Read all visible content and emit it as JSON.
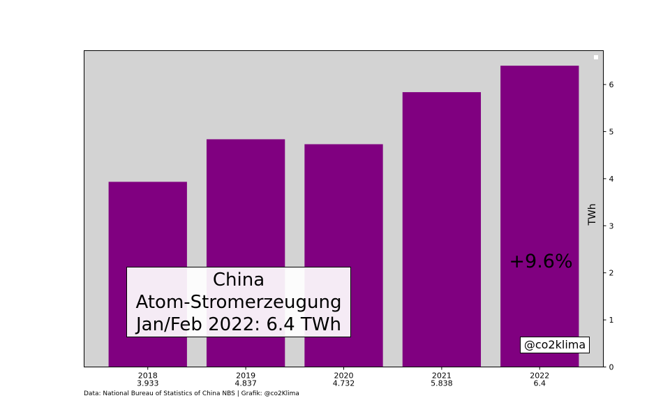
{
  "chart_data": {
    "type": "bar",
    "categories": [
      "2018",
      "2019",
      "2020",
      "2021",
      "2022"
    ],
    "category_value_labels": [
      "3.933",
      "4.837",
      "4.732",
      "5.838",
      "6.4"
    ],
    "values": [
      3.933,
      4.837,
      4.732,
      5.838,
      6.4
    ],
    "title_lines": [
      "China",
      "Atom-Stromerzeugung",
      "Jan/Feb 2022: 6.4 TWh"
    ],
    "xlabel": "",
    "ylabel": "TWh",
    "ylim": [
      0,
      6.72
    ],
    "y_ticks": [
      0,
      1,
      2,
      3,
      4,
      5,
      6
    ],
    "y_axis_side": "right",
    "grid": false,
    "legend": "top-right",
    "annotation": "+9.6%",
    "handle": "@co2klima",
    "source": "Data: National Bureau of Statistics of China NBS | Grafik: @co2Klima",
    "colors": {
      "bar": "#800080",
      "plot_background": "#d3d3d3"
    }
  }
}
